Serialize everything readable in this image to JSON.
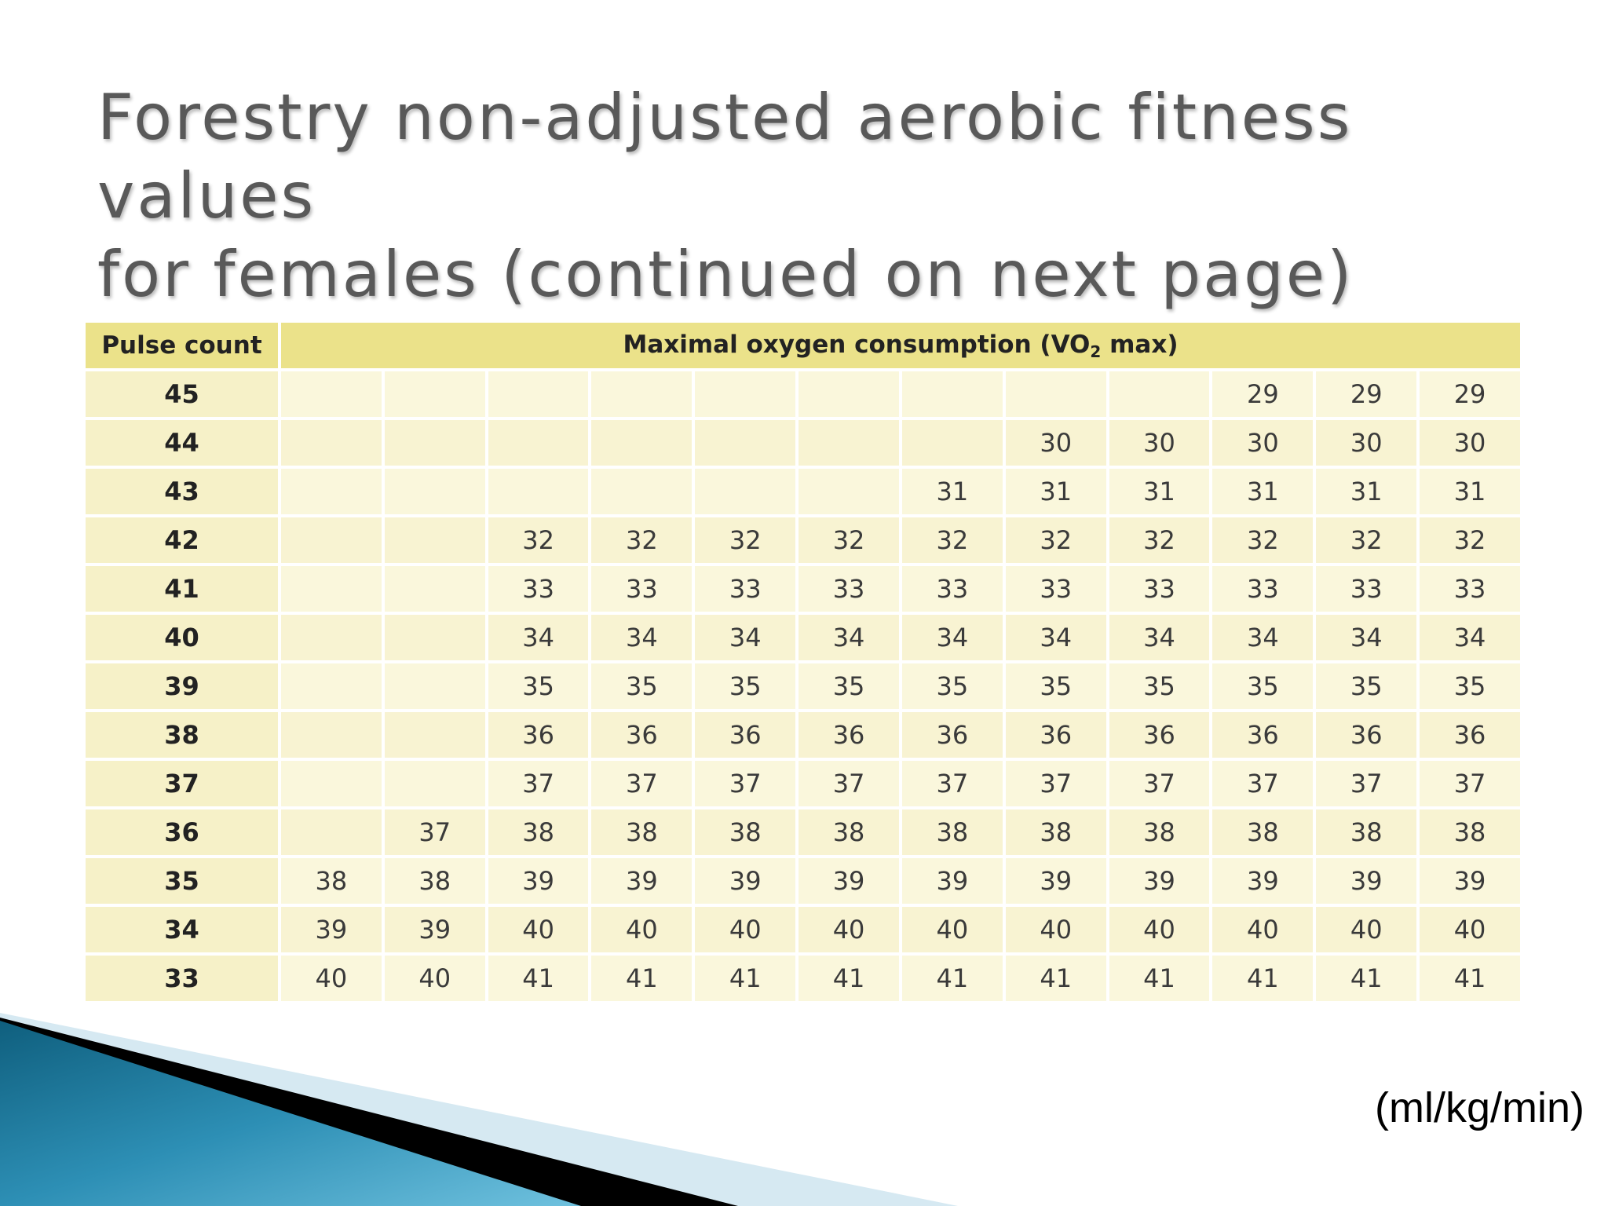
{
  "title": {
    "line1": "Forestry non-adjusted aerobic fitness values",
    "line2": "for females (continued on next page)"
  },
  "table": {
    "header_pulse": "Pulse count",
    "header_vo2_pre": "Maximal oxygen consumption (VO",
    "header_vo2_sub": "2",
    "header_vo2_post": " max)",
    "rows": [
      {
        "pulse": "45",
        "values": [
          "",
          "",
          "",
          "",
          "",
          "",
          "",
          "",
          "",
          "29",
          "29",
          "29"
        ]
      },
      {
        "pulse": "44",
        "values": [
          "",
          "",
          "",
          "",
          "",
          "",
          "",
          "30",
          "30",
          "30",
          "30",
          "30"
        ]
      },
      {
        "pulse": "43",
        "values": [
          "",
          "",
          "",
          "",
          "",
          "",
          "31",
          "31",
          "31",
          "31",
          "31",
          "31"
        ]
      },
      {
        "pulse": "42",
        "values": [
          "",
          "",
          "32",
          "32",
          "32",
          "32",
          "32",
          "32",
          "32",
          "32",
          "32",
          "32"
        ]
      },
      {
        "pulse": "41",
        "values": [
          "",
          "",
          "33",
          "33",
          "33",
          "33",
          "33",
          "33",
          "33",
          "33",
          "33",
          "33"
        ]
      },
      {
        "pulse": "40",
        "values": [
          "",
          "",
          "34",
          "34",
          "34",
          "34",
          "34",
          "34",
          "34",
          "34",
          "34",
          "34"
        ]
      },
      {
        "pulse": "39",
        "values": [
          "",
          "",
          "35",
          "35",
          "35",
          "35",
          "35",
          "35",
          "35",
          "35",
          "35",
          "35"
        ]
      },
      {
        "pulse": "38",
        "values": [
          "",
          "",
          "36",
          "36",
          "36",
          "36",
          "36",
          "36",
          "36",
          "36",
          "36",
          "36"
        ]
      },
      {
        "pulse": "37",
        "values": [
          "",
          "",
          "37",
          "37",
          "37",
          "37",
          "37",
          "37",
          "37",
          "37",
          "37",
          "37"
        ]
      },
      {
        "pulse": "36",
        "values": [
          "",
          "37",
          "38",
          "38",
          "38",
          "38",
          "38",
          "38",
          "38",
          "38",
          "38",
          "38"
        ]
      },
      {
        "pulse": "35",
        "values": [
          "38",
          "38",
          "39",
          "39",
          "39",
          "39",
          "39",
          "39",
          "39",
          "39",
          "39",
          "39"
        ]
      },
      {
        "pulse": "34",
        "values": [
          "39",
          "39",
          "40",
          "40",
          "40",
          "40",
          "40",
          "40",
          "40",
          "40",
          "40",
          "40"
        ]
      },
      {
        "pulse": "33",
        "values": [
          "40",
          "40",
          "41",
          "41",
          "41",
          "41",
          "41",
          "41",
          "41",
          "41",
          "41",
          "41"
        ]
      }
    ]
  },
  "unit_note": "(ml/kg/min)",
  "colors": {
    "header_bg": "#ebe28a",
    "pulse_col_bg": "#f6f1c8",
    "cell_bg": "#faf7dc",
    "title_text": "#595959",
    "decor_blue": "#2d8fb5",
    "decor_light_blue": "#d6e9f2",
    "decor_black": "#000000"
  }
}
